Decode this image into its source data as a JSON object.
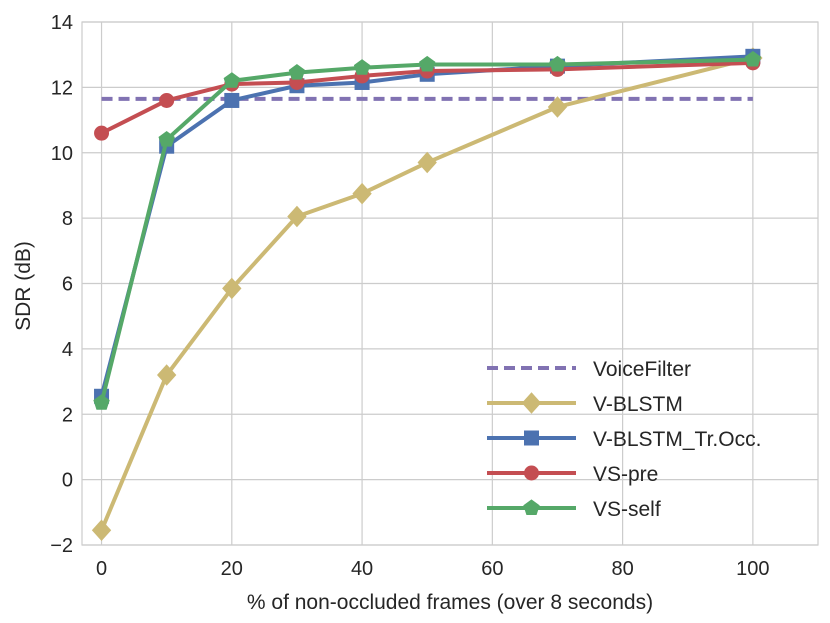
{
  "chart_data": {
    "type": "line",
    "title": "",
    "xlabel": "% of non-occluded frames (over 8 seconds)",
    "ylabel": "SDR (dB)",
    "xlim": [
      -3,
      110
    ],
    "ylim": [
      -2,
      14
    ],
    "xticks": [
      0,
      20,
      40,
      60,
      80,
      100
    ],
    "yticks": [
      -2,
      0,
      2,
      4,
      6,
      8,
      10,
      12,
      14
    ],
    "grid": true,
    "legend_position": "lower-right",
    "series": [
      {
        "name": "VoiceFilter",
        "color": "#8172B2",
        "style": "dashed",
        "marker": "none",
        "x": [
          0,
          100
        ],
        "y": [
          11.65,
          11.65
        ]
      },
      {
        "name": "V-BLSTM",
        "color": "#CCB974",
        "style": "solid",
        "marker": "diamond",
        "x": [
          0,
          10,
          20,
          30,
          40,
          50,
          70,
          100
        ],
        "y": [
          -1.55,
          3.2,
          5.85,
          8.05,
          8.75,
          9.7,
          11.4,
          12.9
        ]
      },
      {
        "name": "V-BLSTM_Tr.Occ.",
        "color": "#4C72B0",
        "style": "solid",
        "marker": "square",
        "x": [
          0,
          10,
          20,
          30,
          40,
          50,
          70,
          100
        ],
        "y": [
          2.55,
          10.2,
          11.6,
          12.05,
          12.15,
          12.4,
          12.65,
          12.95
        ]
      },
      {
        "name": "VS-pre",
        "color": "#C44E52",
        "style": "solid",
        "marker": "circle",
        "x": [
          0,
          10,
          20,
          30,
          40,
          50,
          70,
          100
        ],
        "y": [
          10.6,
          11.6,
          12.1,
          12.15,
          12.35,
          12.5,
          12.55,
          12.75
        ]
      },
      {
        "name": "VS-self",
        "color": "#55A868",
        "style": "solid",
        "marker": "pentagon",
        "x": [
          0,
          10,
          20,
          30,
          40,
          50,
          70,
          100
        ],
        "y": [
          2.35,
          10.4,
          12.2,
          12.45,
          12.6,
          12.7,
          12.7,
          12.85
        ]
      }
    ]
  }
}
